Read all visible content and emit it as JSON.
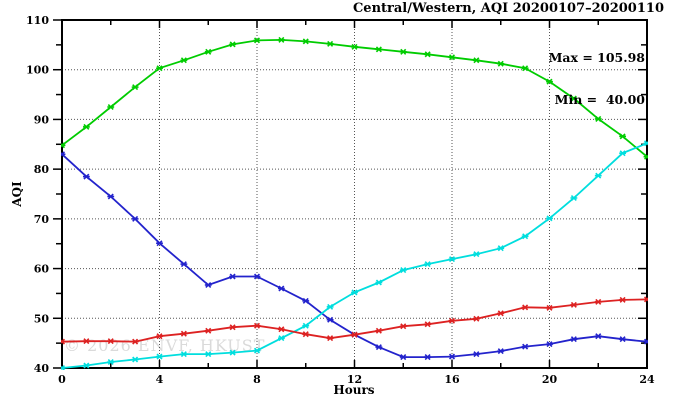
{
  "title": "Central/Western, AQI 20200107–20200110",
  "annotation": {
    "max_label": "Max = 105.98",
    "min_label": "Min =  40.00"
  },
  "watermark": "© 2026 ENVF, HKUST",
  "chart_data": {
    "type": "line",
    "title": "Central/Western, AQI 20200107–20200110",
    "xlabel": "Hours",
    "ylabel": "AQI",
    "xlim": [
      0,
      24
    ],
    "ylim": [
      40,
      110
    ],
    "x_major_tick": 4,
    "x_minor_tick": 2,
    "y_major_tick": 10,
    "y_minor_tick": 5,
    "grid": "dotted lines at major ticks, ticks mirrored on all four sides",
    "legend": "none",
    "marker": "asterisk",
    "stats": {
      "max": 105.98,
      "min": 40.0
    },
    "x": [
      0,
      1,
      2,
      3,
      4,
      5,
      6,
      7,
      8,
      9,
      10,
      11,
      12,
      13,
      14,
      15,
      16,
      17,
      18,
      19,
      20,
      21,
      22,
      23,
      24
    ],
    "series": [
      {
        "name": "green",
        "color": "#00cc00",
        "values": [
          84.8,
          88.5,
          92.5,
          96.5,
          100.3,
          101.9,
          103.6,
          105.1,
          105.9,
          106.0,
          105.7,
          105.2,
          104.6,
          104.1,
          103.6,
          103.1,
          102.5,
          101.9,
          101.2,
          100.3,
          97.6,
          94.2,
          90.1,
          86.6,
          82.5
        ]
      },
      {
        "name": "blue",
        "color": "#2323cc",
        "values": [
          83.0,
          78.5,
          74.5,
          70.0,
          65.1,
          60.9,
          56.7,
          58.4,
          58.4,
          56.0,
          53.5,
          49.7,
          46.7,
          44.2,
          42.2,
          42.2,
          42.3,
          42.8,
          43.4,
          44.3,
          44.8,
          45.8,
          46.4,
          45.8,
          45.3
        ]
      },
      {
        "name": "cyan",
        "color": "#00dede",
        "values": [
          40.0,
          40.5,
          41.2,
          41.7,
          42.3,
          42.8,
          42.8,
          43.1,
          43.5,
          46.0,
          48.5,
          52.3,
          55.2,
          57.2,
          59.7,
          60.9,
          61.9,
          62.9,
          64.1,
          66.5,
          70.1,
          74.2,
          78.7,
          83.2,
          85.2
        ]
      },
      {
        "name": "red",
        "color": "#dd2222",
        "values": [
          45.3,
          45.4,
          45.4,
          45.3,
          46.4,
          46.9,
          47.5,
          48.2,
          48.5,
          47.8,
          46.8,
          46.0,
          46.7,
          47.5,
          48.4,
          48.8,
          49.5,
          49.9,
          51.0,
          52.2,
          52.1,
          52.7,
          53.3,
          53.7,
          53.8
        ]
      }
    ],
    "colors": {
      "axis": "#000000",
      "grid": "#555555",
      "background": "#ffffff",
      "watermark": "#dadada"
    }
  }
}
